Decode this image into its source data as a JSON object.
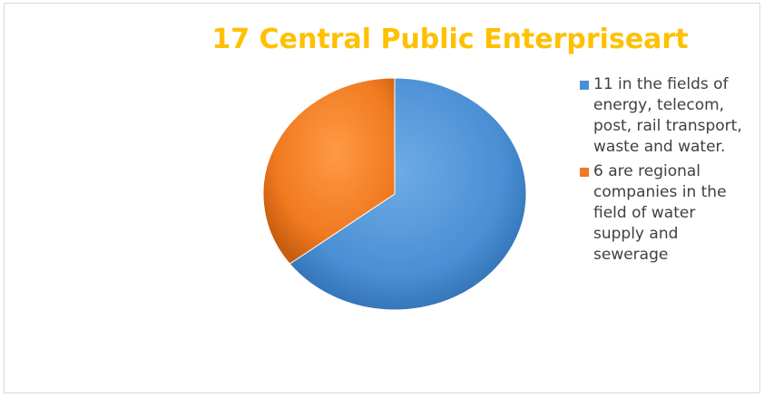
{
  "chart_data": {
    "type": "pie",
    "title": "17 Central Public Enterpriseart",
    "legend_position": "right",
    "slices": [
      {
        "label": "11 in the fields of energy, telecom, post, rail transport, waste and water.",
        "value": 11,
        "color": "#4a8fd4"
      },
      {
        "label": "6 are regional companies in the field of water supply and sewerage",
        "value": 6,
        "color": "#f07a20"
      }
    ]
  }
}
